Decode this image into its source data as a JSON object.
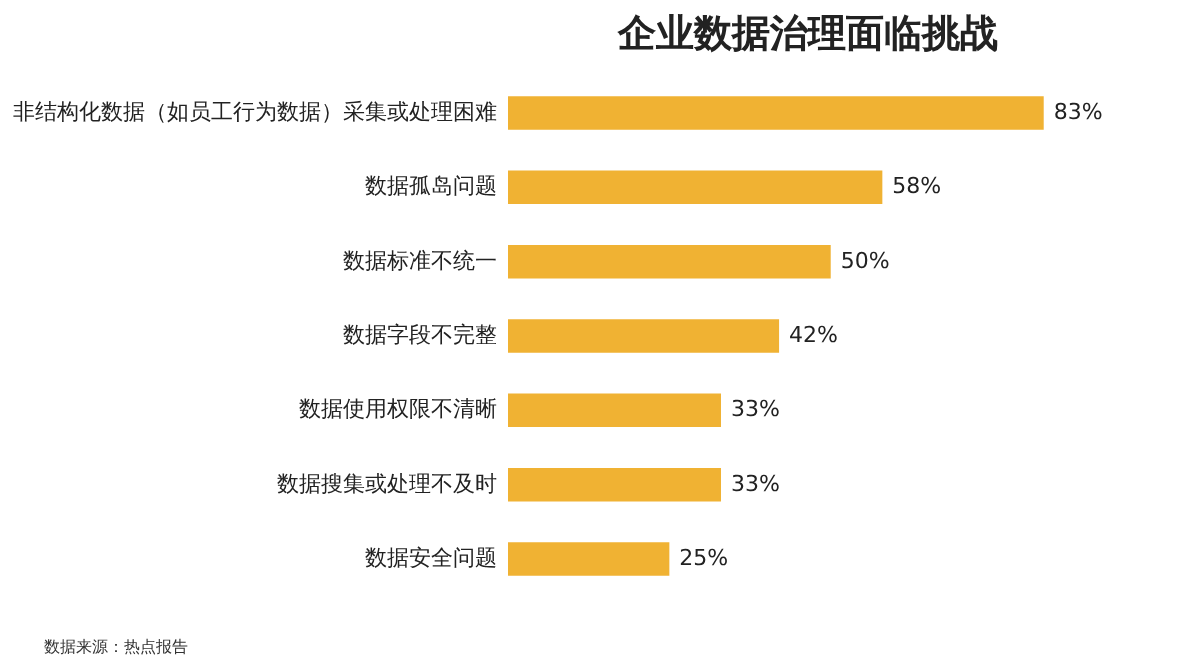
{
  "chart_data": {
    "type": "bar",
    "orientation": "horizontal",
    "title": "企业数据治理面临挑战",
    "categories": [
      "非结构化数据（如员工行为数据）采集或处理困难",
      "数据孤岛问题",
      "数据标准不统一",
      "数据字段不完整",
      "数据使用权限不清晰",
      "数据搜集或处理不及时",
      "数据安全问题"
    ],
    "values": [
      83,
      58,
      50,
      42,
      33,
      33,
      25
    ],
    "value_labels": [
      "83%",
      "58%",
      "50%",
      "42%",
      "33%",
      "33%",
      "25%"
    ],
    "color": "#f0b233",
    "annotations": [
      "数据来源：热点报告"
    ]
  }
}
